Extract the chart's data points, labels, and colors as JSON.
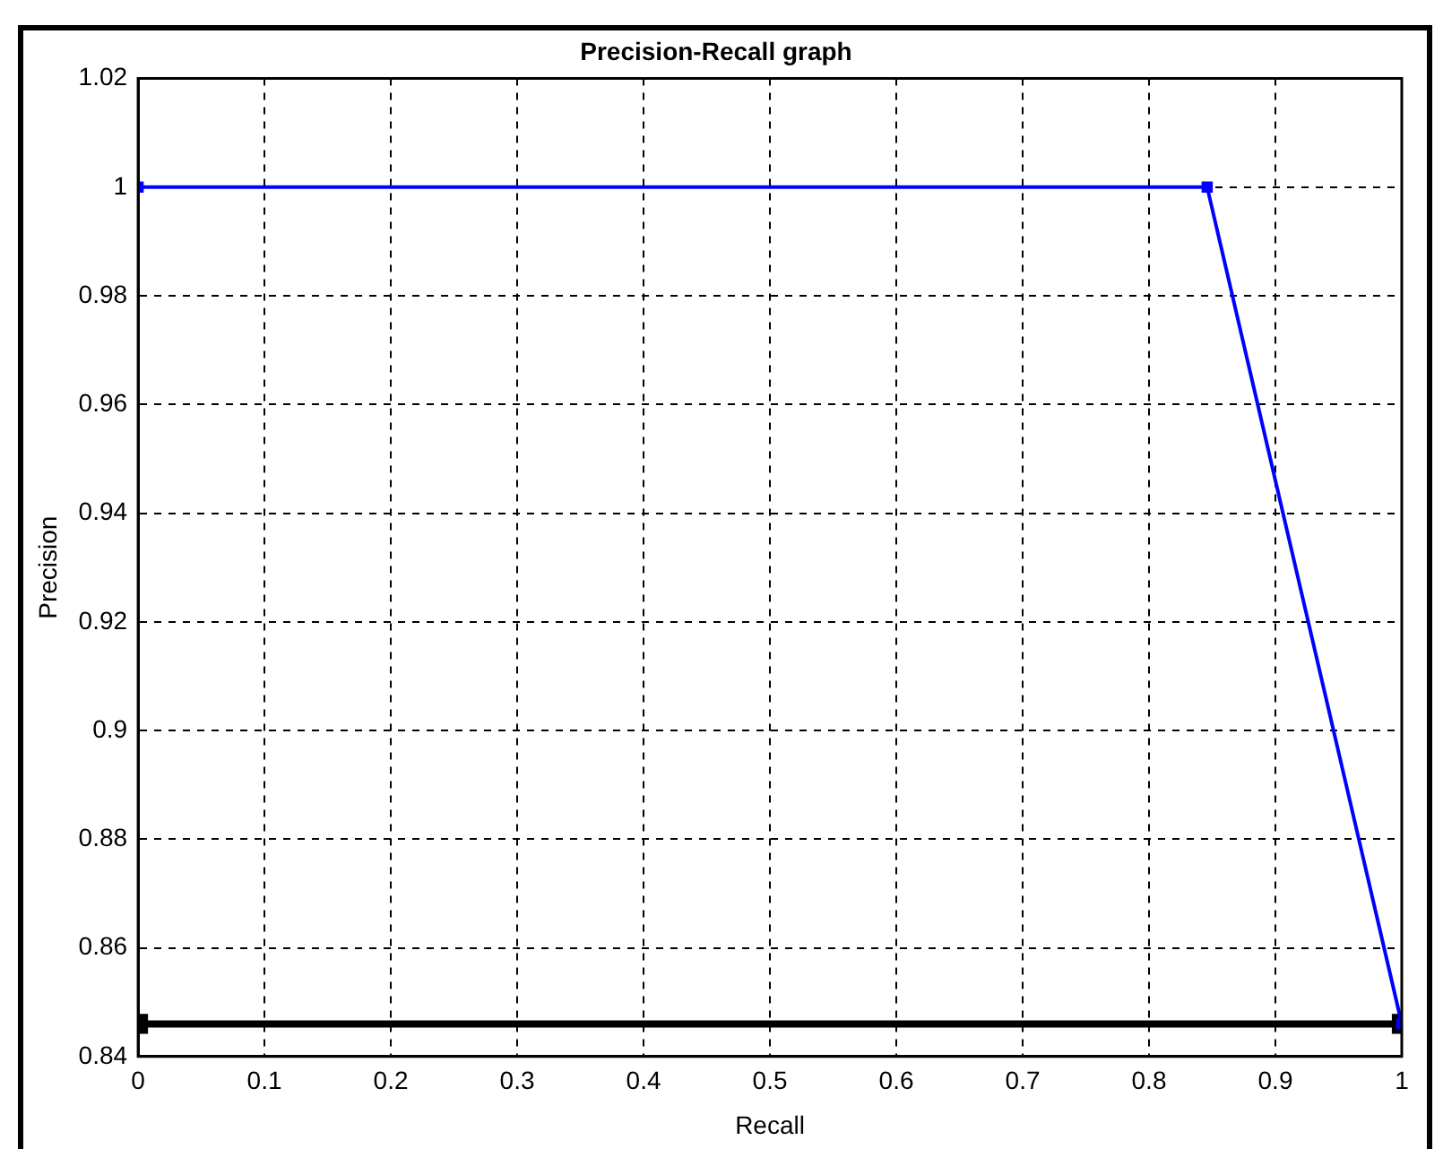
{
  "chart_data": {
    "type": "line",
    "title": "Precision-Recall graph",
    "xlabel": "Recall",
    "ylabel": "Precision",
    "series": [
      {
        "color": "#0000ff",
        "x": [
          0,
          0.846,
          1
        ],
        "values": [
          1,
          1,
          0.846
        ]
      },
      {
        "color": "#000000",
        "x": [
          0,
          1
        ],
        "values": [
          0.846,
          0.846
        ]
      }
    ],
    "xlim": [
      0,
      1
    ],
    "xticks": [
      0,
      0.1,
      0.2,
      0.3,
      0.4,
      0.5,
      0.6,
      0.7,
      0.8,
      0.9,
      1
    ],
    "ylim": [
      0.84,
      1.02
    ],
    "yticks": [
      0.84,
      0.86,
      0.88,
      0.9,
      0.92,
      0.94,
      0.96,
      0.98,
      1,
      1.02
    ],
    "grid": true,
    "marker": "square",
    "line_style": "solid",
    "legend": false
  }
}
